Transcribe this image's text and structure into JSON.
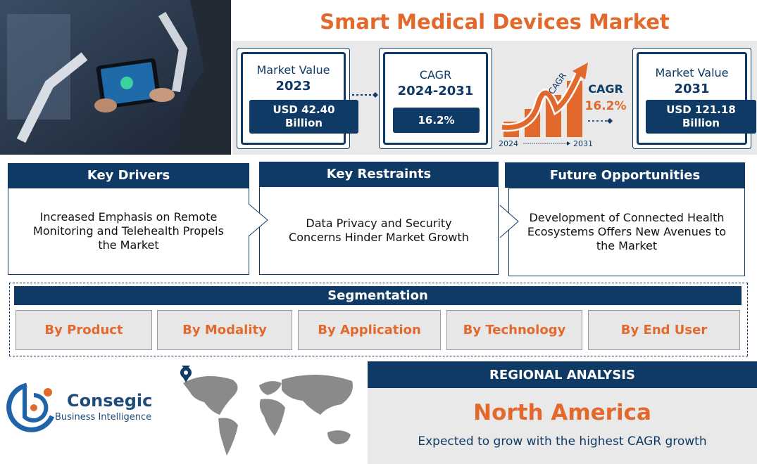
{
  "header": {
    "title": "Smart Medical Devices Market"
  },
  "stats": [
    {
      "label": "Market Value",
      "period": "2023",
      "value": "USD 42.40 Billion"
    },
    {
      "label": "CAGR",
      "period": "2024-2031",
      "value": "16.2%"
    },
    {
      "label": "Market Value",
      "period": "2031",
      "value": "USD 121.18 Billion"
    }
  ],
  "cagr_graphic": {
    "arrow_label": "CAGR",
    "label": "CAGR",
    "value": "16.2%",
    "start": "2024",
    "end": "2031"
  },
  "cards": [
    {
      "title": "Key Drivers",
      "text": "Increased Emphasis on Remote Monitoring and Telehealth Propels the Market"
    },
    {
      "title": "Key Restraints",
      "text": "Data Privacy and Security Concerns Hinder Market Growth"
    },
    {
      "title": "Future Opportunities",
      "text": "Development of Connected Health Ecosystems Offers New Avenues to the Market"
    }
  ],
  "segmentation": {
    "title": "Segmentation",
    "items": [
      "By Product",
      "By Modality",
      "By Application",
      "By Technology",
      "By End User"
    ]
  },
  "brand": {
    "name": "Consegic",
    "tagline": "Business Intelligence"
  },
  "regional": {
    "title": "REGIONAL ANALYSIS",
    "region": "North America",
    "note": "Expected to grow with the highest CAGR growth"
  }
}
